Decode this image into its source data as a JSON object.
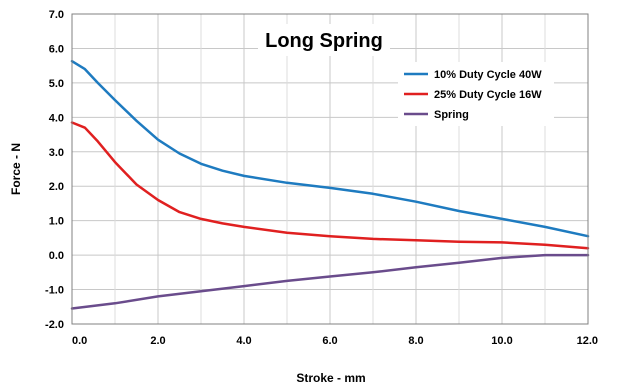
{
  "chart_data": {
    "type": "line",
    "title": "Long Spring",
    "xlabel": "Stroke - mm",
    "ylabel": "Force - N",
    "xlim": [
      0,
      12
    ],
    "ylim": [
      -2,
      7
    ],
    "grid": true,
    "legend_position": "top-right",
    "x_ticks": [
      0,
      2,
      4,
      6,
      8,
      10,
      12
    ],
    "x_tick_labels": [
      "0.0",
      "2.0",
      "4.0",
      "6.0",
      "8.0",
      "10.0",
      "12.0"
    ],
    "y_ticks": [
      -2,
      -1,
      0,
      1,
      2,
      3,
      4,
      5,
      6,
      7
    ],
    "y_tick_labels": [
      "-2.0",
      "-1.0",
      "0.0",
      "1.0",
      "2.0",
      "3.0",
      "4.0",
      "5.0",
      "6.0",
      "7.0"
    ],
    "series": [
      {
        "name": "10% Duty Cycle 40W",
        "color": "#1e7bc0",
        "x": [
          0,
          0.3,
          0.6,
          1.0,
          1.5,
          2.0,
          2.5,
          3.0,
          3.5,
          4.0,
          5.0,
          6.0,
          7.0,
          8.0,
          9.0,
          10.0,
          11.0,
          12.0
        ],
        "y": [
          5.63,
          5.4,
          5.0,
          4.5,
          3.9,
          3.35,
          2.95,
          2.65,
          2.45,
          2.3,
          2.1,
          1.95,
          1.78,
          1.55,
          1.28,
          1.05,
          0.82,
          0.55
        ]
      },
      {
        "name": "25% Duty Cycle 16W",
        "color": "#e02020",
        "x": [
          0,
          0.3,
          0.6,
          1.0,
          1.5,
          2.0,
          2.5,
          3.0,
          3.5,
          4.0,
          5.0,
          6.0,
          7.0,
          8.0,
          9.0,
          10.0,
          11.0,
          12.0
        ],
        "y": [
          3.85,
          3.7,
          3.3,
          2.7,
          2.05,
          1.6,
          1.25,
          1.05,
          0.92,
          0.82,
          0.65,
          0.55,
          0.47,
          0.43,
          0.39,
          0.37,
          0.3,
          0.2
        ]
      },
      {
        "name": "Spring",
        "color": "#6a4c8c",
        "x": [
          0,
          1,
          2,
          3,
          4,
          5,
          6,
          7,
          8,
          9,
          10,
          11,
          12
        ],
        "y": [
          -1.55,
          -1.4,
          -1.2,
          -1.05,
          -0.9,
          -0.75,
          -0.62,
          -0.5,
          -0.35,
          -0.22,
          -0.08,
          0.0,
          0.0
        ]
      }
    ]
  }
}
